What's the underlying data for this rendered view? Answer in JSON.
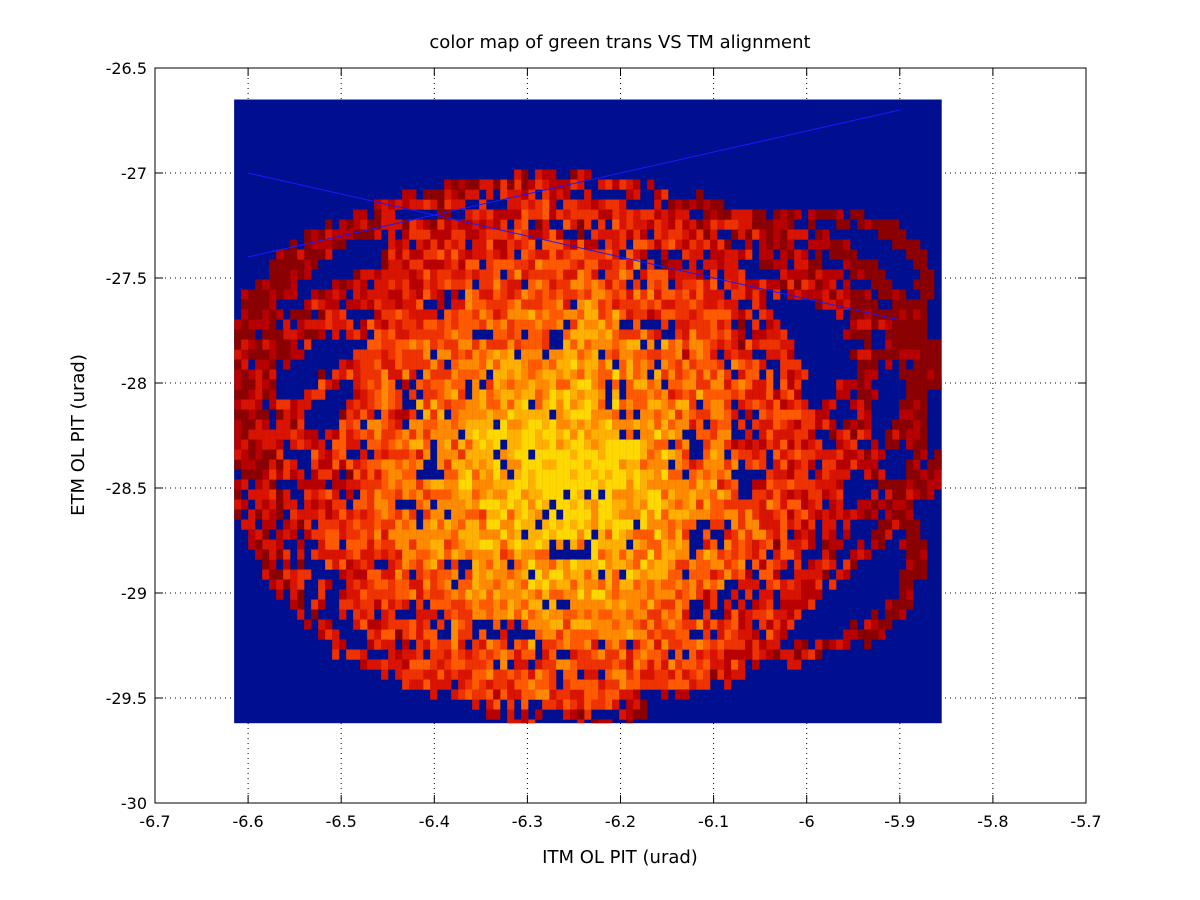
{
  "chart_data": {
    "type": "heatmap",
    "title": "color map of green trans VS TM alignment",
    "xlabel": "ITM OL PIT (urad)",
    "ylabel": "ETM OL PIT (urad)",
    "xlim": [
      -6.7,
      -5.7
    ],
    "ylim": [
      -30,
      -26.5
    ],
    "xticks": [
      "-6.7",
      "-6.6",
      "-6.5",
      "-6.4",
      "-6.3",
      "-6.2",
      "-6.1",
      "-6",
      "-5.9",
      "-5.8",
      "-5.7"
    ],
    "yticks": [
      "-30",
      "-29.5",
      "-29",
      "-28.5",
      "-28",
      "-27.5",
      "-27",
      "-26.5"
    ],
    "grid": true,
    "colormap": "hot",
    "background_color": "#000f8f",
    "image_extent": {
      "x": [
        -6.615,
        -5.855
      ],
      "y": [
        -29.62,
        -26.65
      ]
    },
    "hot_colors": [
      "#8b0000",
      "#b80000",
      "#d81400",
      "#ee3300",
      "#ff5a00",
      "#ff8a00",
      "#ffb000",
      "#ffd800"
    ],
    "blue_trace_color": "#1a1aff",
    "blue_traces": [
      {
        "x": [
          -6.6,
          -5.9
        ],
        "y": [
          -27.4,
          -26.7
        ]
      },
      {
        "x": [
          -6.6,
          -5.9
        ],
        "y": [
          -27.0,
          -27.7
        ]
      }
    ],
    "orbits": [
      {
        "cx": -6.23,
        "cy": -28.1,
        "rx": 0.22,
        "ry": 0.95,
        "rot": 10
      },
      {
        "cx": -6.3,
        "cy": -28.3,
        "rx": 0.3,
        "ry": 0.8,
        "rot": -20
      },
      {
        "cx": -6.2,
        "cy": -28.0,
        "rx": 0.38,
        "ry": 0.55,
        "rot": 35
      },
      {
        "cx": -6.25,
        "cy": -28.5,
        "rx": 0.33,
        "ry": 0.65,
        "rot": 60
      },
      {
        "cx": -6.1,
        "cy": -27.9,
        "rx": 0.22,
        "ry": 0.75,
        "rot": 80
      },
      {
        "cx": -6.35,
        "cy": -28.2,
        "rx": 0.26,
        "ry": 0.85,
        "rot": -50
      },
      {
        "cx": -6.3,
        "cy": -28.6,
        "rx": 0.3,
        "ry": 0.95,
        "rot": 75
      },
      {
        "cx": -6.2,
        "cy": -28.4,
        "rx": 0.35,
        "ry": 0.6,
        "rot": -75
      },
      {
        "cx": -6.18,
        "cy": -28.2,
        "rx": 0.3,
        "ry": 1.0,
        "rot": 5
      },
      {
        "cx": -6.34,
        "cy": -27.8,
        "rx": 0.25,
        "ry": 0.7,
        "rot": 25
      },
      {
        "cx": -6.12,
        "cy": -28.6,
        "rx": 0.27,
        "ry": 0.6,
        "rot": -40
      },
      {
        "cx": -6.4,
        "cy": -28.5,
        "rx": 0.2,
        "ry": 0.9,
        "rot": 45
      },
      {
        "cx": -6.05,
        "cy": -28.1,
        "rx": 0.22,
        "ry": 0.55,
        "rot": -10
      },
      {
        "cx": -6.28,
        "cy": -28.0,
        "rx": 0.32,
        "ry": 1.15,
        "rot": 90
      },
      {
        "cx": -6.22,
        "cy": -28.7,
        "rx": 0.24,
        "ry": 0.85,
        "rot": -65
      },
      {
        "cx": -6.42,
        "cy": -28.0,
        "rx": 0.18,
        "ry": 0.75,
        "rot": 15
      },
      {
        "cx": -6.3,
        "cy": -28.4,
        "rx": 0.38,
        "ry": 0.5,
        "rot": 100
      },
      {
        "cx": -6.15,
        "cy": -27.9,
        "rx": 0.34,
        "ry": 0.6,
        "rot": -30
      }
    ]
  }
}
